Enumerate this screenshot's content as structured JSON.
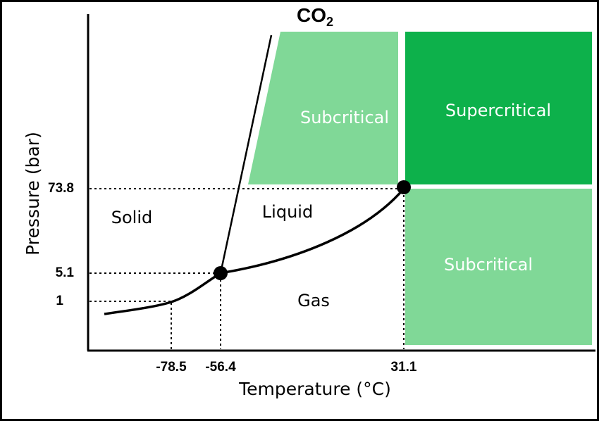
{
  "title": {
    "text": "CO",
    "subscript": "2"
  },
  "axes": {
    "x_label": "Temperature (°C)",
    "y_label": "Pressure (bar)"
  },
  "x_ticks": [
    "-78.5",
    "-56.4",
    "31.1"
  ],
  "y_ticks": [
    "73.8",
    "5.1",
    "1"
  ],
  "regions": {
    "solid": "Solid",
    "liquid": "Liquid",
    "gas": "Gas",
    "subcritical_top": "Subcritical",
    "supercritical": "Supercritical",
    "subcritical_right": "Subcritical"
  }
}
